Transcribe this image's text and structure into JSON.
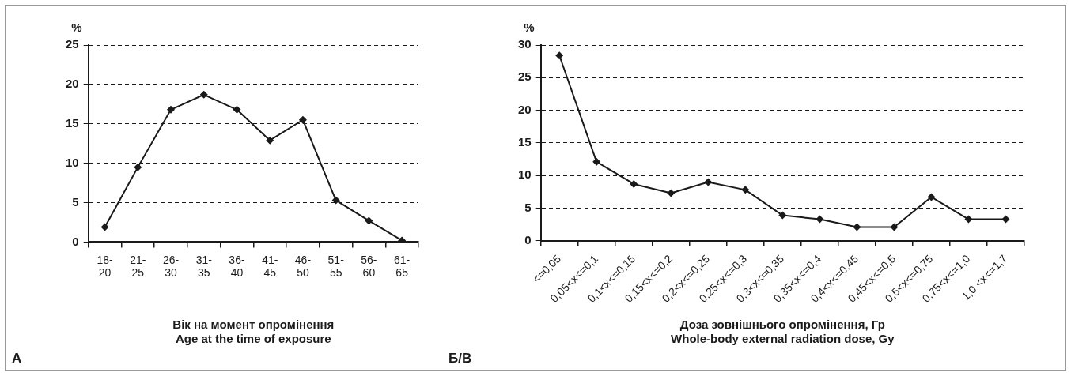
{
  "chart_data": [
    {
      "type": "line",
      "xlabel": "Вік на момент опромінення\nAge at the time of exposure",
      "ylabel": "%",
      "categories": [
        "18-20",
        "21-25",
        "26-30",
        "31-35",
        "36-40",
        "41-45",
        "46-50",
        "51-55",
        "56-60",
        "61-65"
      ],
      "series": [
        {
          "color": "#1a1a1a",
          "values": [
            1.9,
            9.5,
            16.8,
            18.7,
            16.8,
            12.9,
            15.5,
            5.3,
            2.7,
            0.2
          ]
        }
      ],
      "ylim": [
        0,
        25
      ],
      "yticks": [
        0,
        5,
        10,
        15,
        20,
        25
      ],
      "grid": "y",
      "legend": false,
      "marker": "diamond",
      "line_style": "solid",
      "annotations": [
        "А"
      ]
    },
    {
      "type": "line",
      "xlabel": "Доза зовнішнього опромінення, Гр\nWhole-body external radiation dose, Gy",
      "ylabel": "%",
      "categories": [
        "<=0,05",
        "0,05<x<=0,1",
        "0,1<x<=0,15",
        "0,15<x<=0,2",
        "0,2<x<=0,25",
        "0,25<x<=0,3",
        "0,3<x<=0,35",
        "0,35<x<=0,4",
        "0,4<x<=0,45",
        "0,45<x<=0,5",
        "0,5<x<=0,75",
        "0,75<x<=1,0",
        "1,0 <x<=1,7"
      ],
      "series": [
        {
          "color": "#1a1a1a",
          "values": [
            28.4,
            12.1,
            8.7,
            7.3,
            9.0,
            7.8,
            3.9,
            3.3,
            2.1,
            2.1,
            6.7,
            3.3,
            3.3
          ]
        }
      ],
      "ylim": [
        0,
        30
      ],
      "yticks": [
        0,
        5,
        10,
        15,
        20,
        25,
        30
      ],
      "grid": "y",
      "legend": false,
      "marker": "diamond",
      "line_style": "solid",
      "annotations": [
        "Б/В"
      ]
    }
  ]
}
